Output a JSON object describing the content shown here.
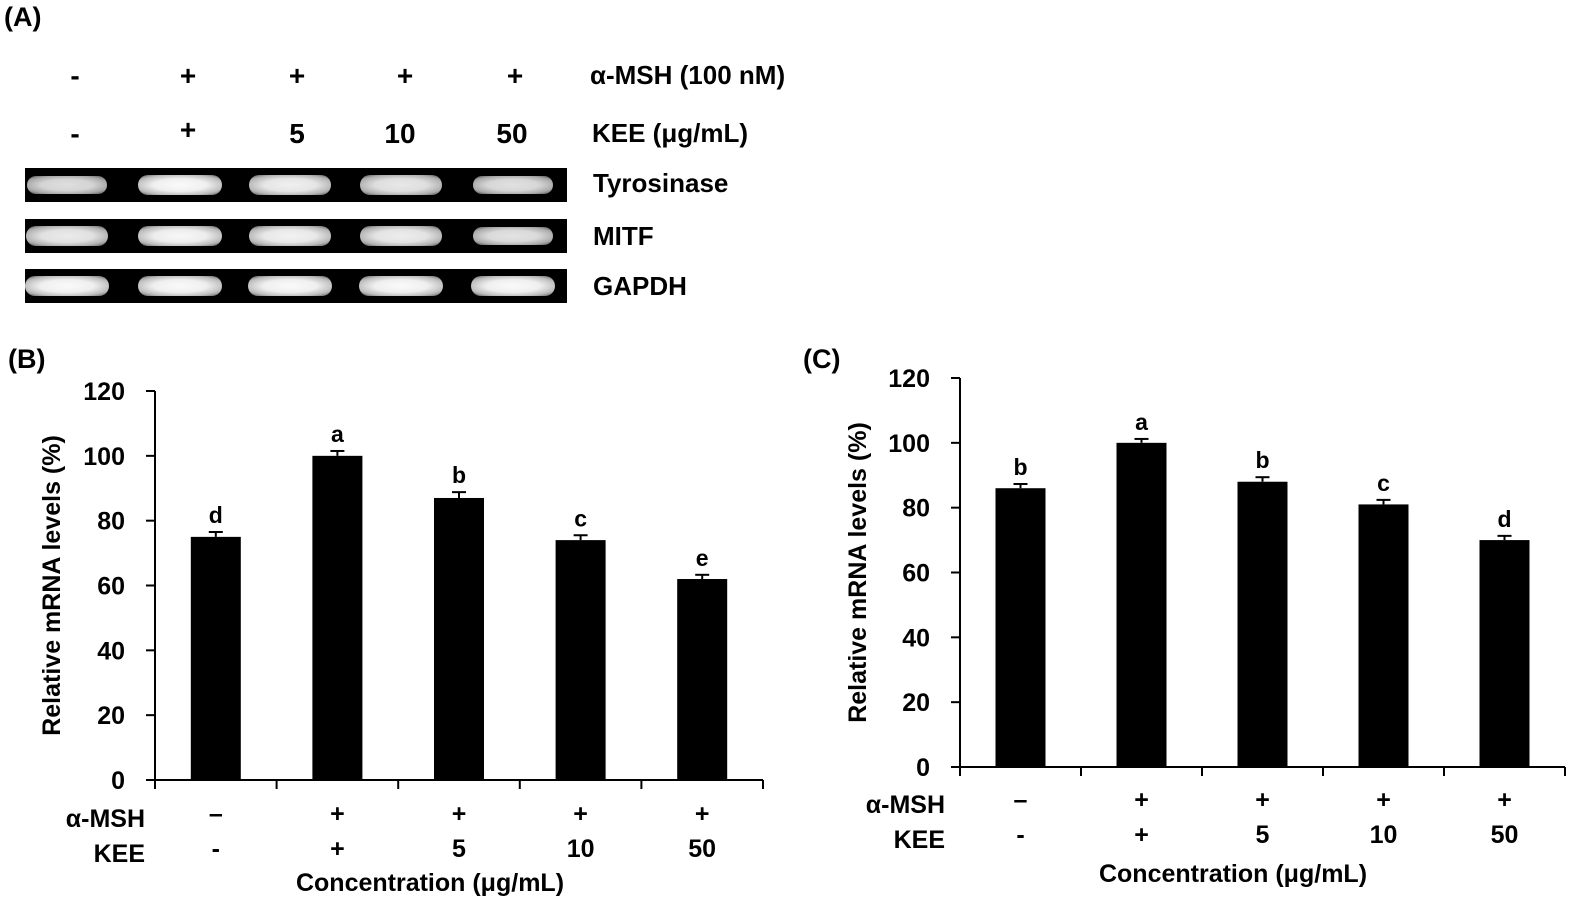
{
  "panel_a": {
    "label": "(A)",
    "msh_signs": [
      "-",
      "+",
      "+",
      "+",
      "+"
    ],
    "kee_signs": [
      "-",
      "+",
      "5",
      "10",
      "50"
    ],
    "msh_label": "α-MSH (100 nM)",
    "kee_label": "KEE (μg/mL)",
    "genes": [
      "Tyrosinase",
      "MITF",
      "GAPDH"
    ],
    "band_intensity": [
      [
        0.72,
        0.95,
        0.86,
        0.8,
        0.74
      ],
      [
        0.82,
        0.94,
        0.88,
        0.84,
        0.76
      ],
      [
        0.96,
        0.96,
        0.96,
        0.95,
        0.95
      ]
    ]
  },
  "chart_data": [
    {
      "type": "bar",
      "panel_label": "(B)",
      "ylabel": "Relative mRNA levels (%)",
      "xlabel": "Concentration (μg/mL)",
      "ylim": [
        0,
        120
      ],
      "yticks": [
        "0",
        "20",
        "40",
        "60",
        "80",
        "100",
        "120"
      ],
      "row_labels": [
        "α-MSH",
        "KEE"
      ],
      "msh_row": [
        "–",
        "+",
        "+",
        "+",
        "+"
      ],
      "kee_row": [
        "-",
        "+",
        "5",
        "10",
        "50"
      ],
      "values": [
        75,
        100,
        87,
        74,
        62
      ],
      "errors": [
        1.5,
        1.5,
        1.8,
        1.5,
        1.3
      ],
      "letters": [
        "d",
        "a",
        "b",
        "c",
        "e"
      ]
    },
    {
      "type": "bar",
      "panel_label": "(C)",
      "ylabel": "Relative mRNA levels (%)",
      "xlabel": "Concentration (μg/mL)",
      "ylim": [
        0,
        120
      ],
      "yticks": [
        "0",
        "20",
        "40",
        "60",
        "80",
        "100",
        "120"
      ],
      "row_labels": [
        "α-MSH",
        "KEE"
      ],
      "msh_row": [
        "–",
        "+",
        "+",
        "+",
        "+"
      ],
      "kee_row": [
        "-",
        "+",
        "5",
        "10",
        "50"
      ],
      "values": [
        86,
        100,
        88,
        81,
        70
      ],
      "errors": [
        1.3,
        1.2,
        1.4,
        1.4,
        1.3
      ],
      "letters": [
        "b",
        "a",
        "b",
        "c",
        "d"
      ]
    }
  ]
}
